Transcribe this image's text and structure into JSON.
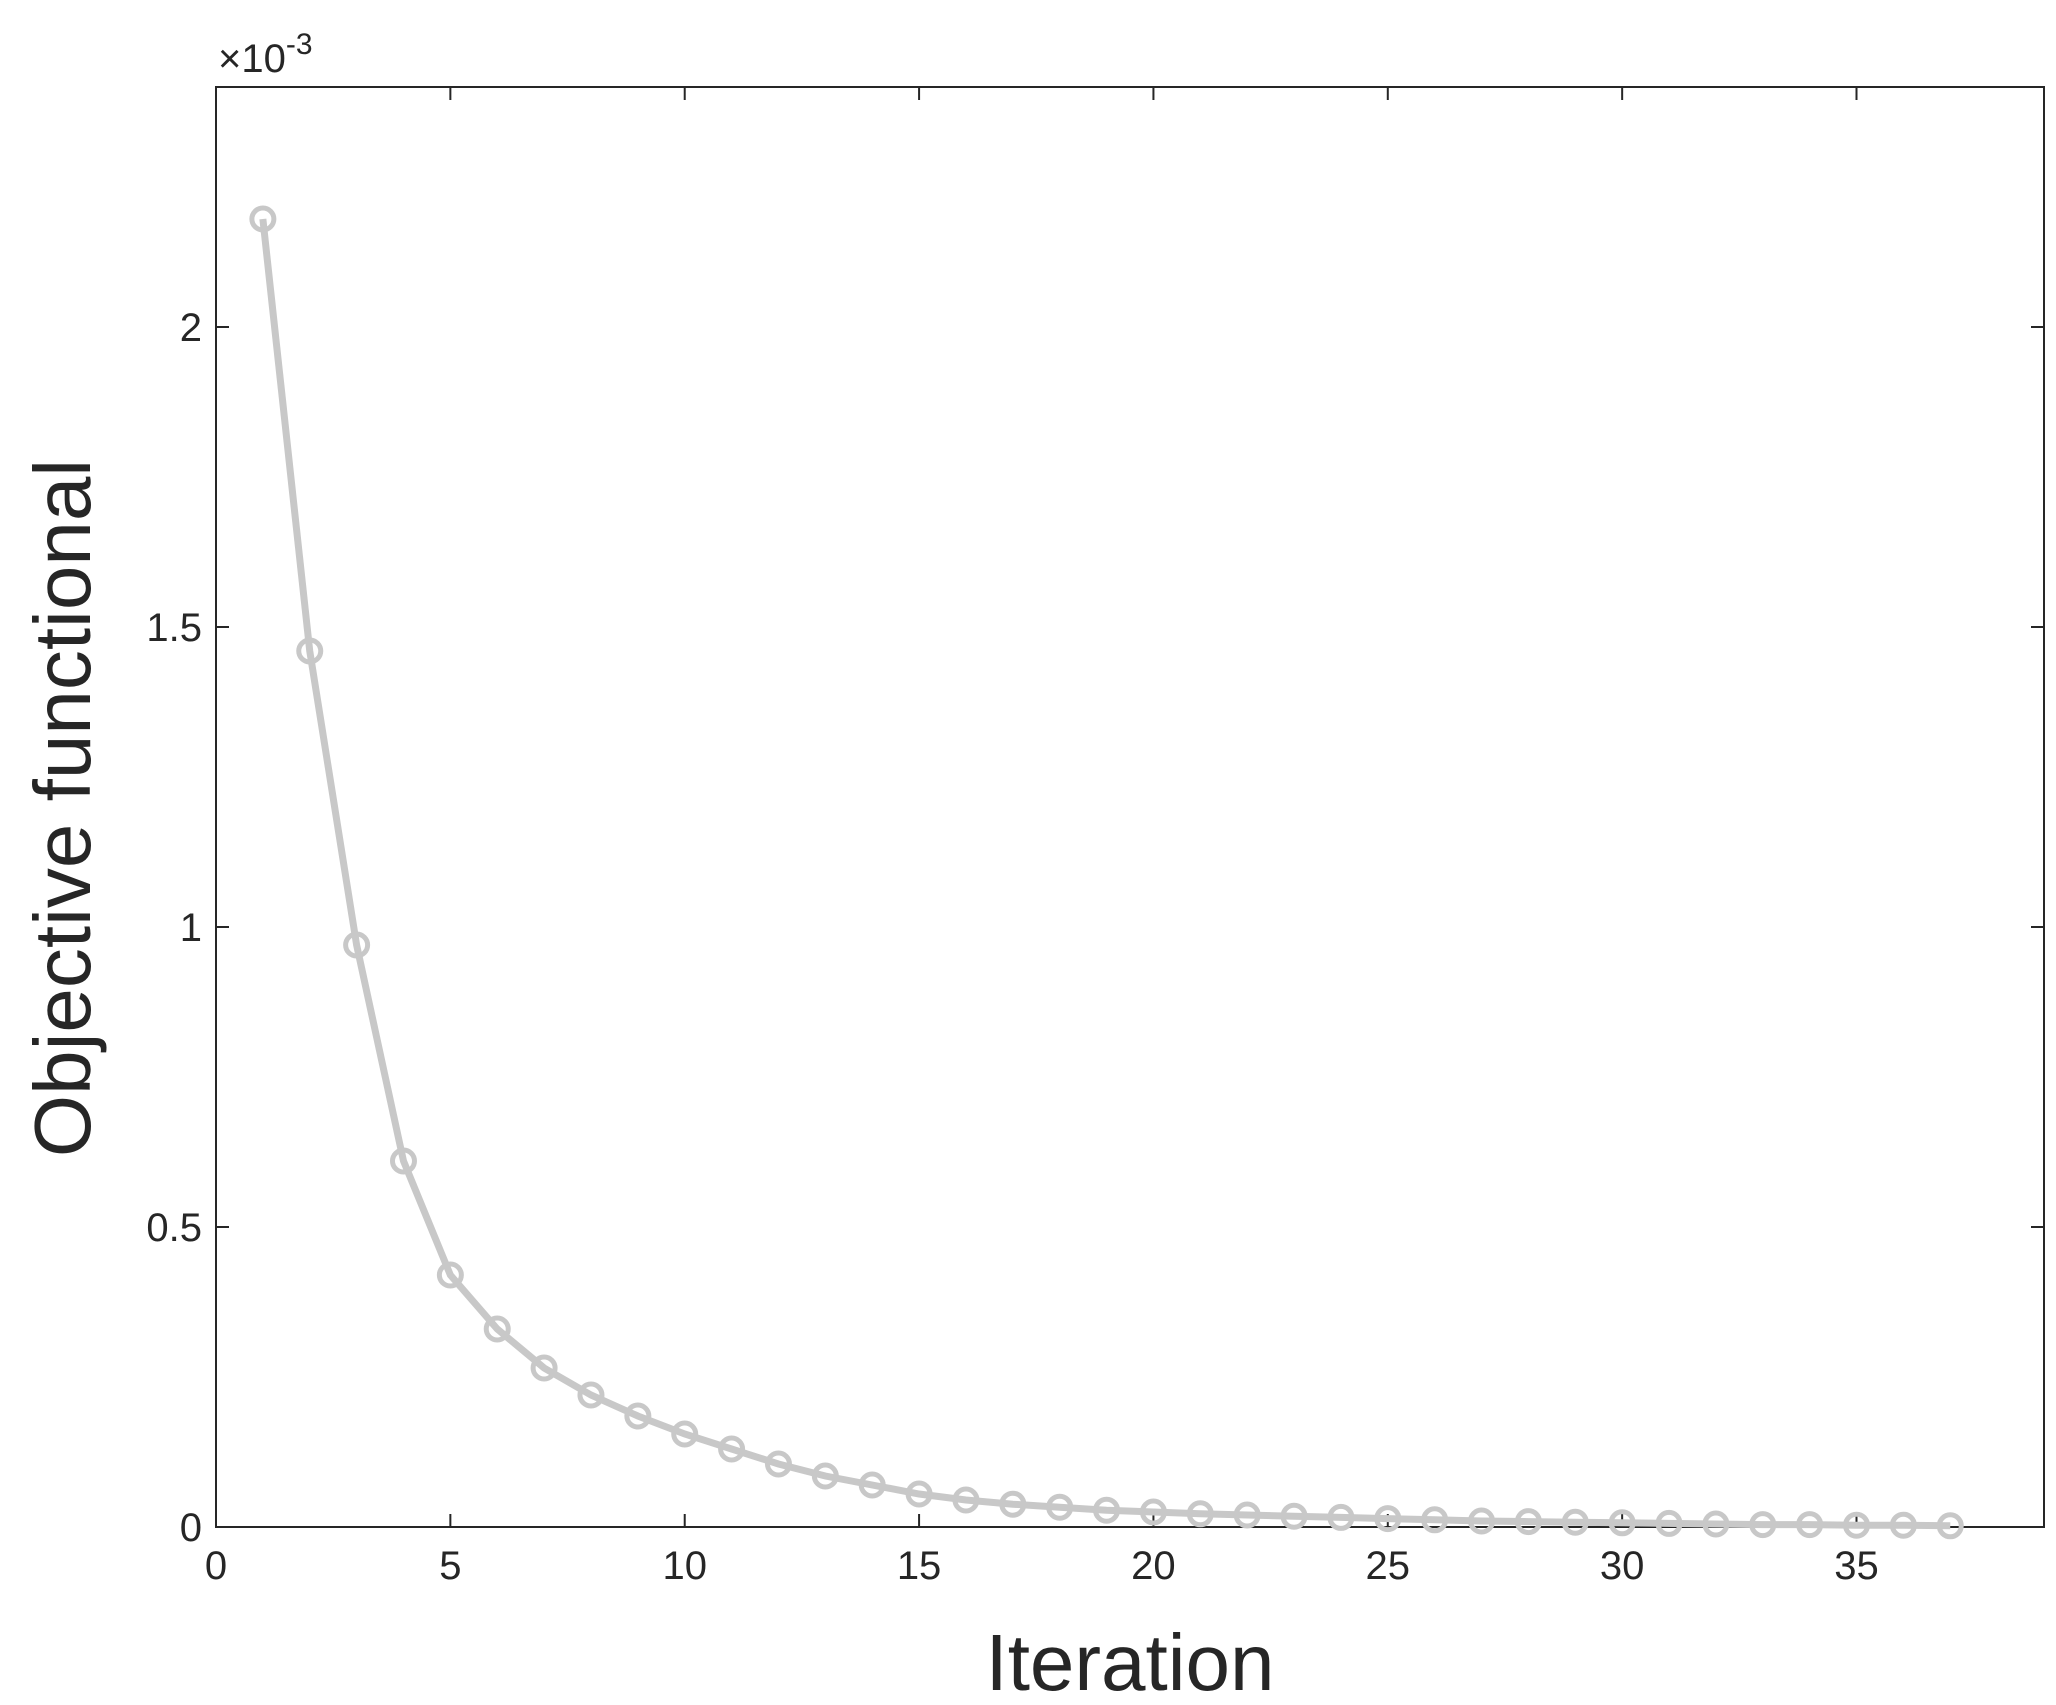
{
  "chart_data": {
    "type": "line",
    "xlabel": "Iteration",
    "ylabel": "Objective functional",
    "y_multiplier": {
      "base": "×10",
      "exponent": "-3"
    },
    "xlim": [
      0,
      39
    ],
    "xticks": [
      0,
      5,
      10,
      15,
      20,
      25,
      30,
      35
    ],
    "ylim": [
      0,
      2.4
    ],
    "yticks": [
      0,
      0.5,
      1,
      1.5,
      2
    ],
    "grid": false,
    "box": true,
    "series": [
      {
        "color": "#c8c8c8",
        "x": [
          1,
          2,
          3,
          4,
          5,
          6,
          7,
          8,
          9,
          10,
          11,
          12,
          13,
          14,
          15,
          16,
          17,
          18,
          19,
          20,
          21,
          22,
          23,
          24,
          25,
          26,
          27,
          28,
          29,
          30,
          31,
          32,
          33,
          34,
          35,
          36,
          37
        ],
        "values": [
          2.18,
          1.46,
          0.97,
          0.61,
          0.42,
          0.33,
          0.265,
          0.22,
          0.185,
          0.155,
          0.13,
          0.105,
          0.085,
          0.07,
          0.055,
          0.045,
          0.038,
          0.033,
          0.028,
          0.025,
          0.022,
          0.02,
          0.018,
          0.016,
          0.014,
          0.012,
          0.01,
          0.009,
          0.008,
          0.007,
          0.006,
          0.005,
          0.004,
          0.004,
          0.003,
          0.003,
          0.002
        ]
      }
    ]
  }
}
